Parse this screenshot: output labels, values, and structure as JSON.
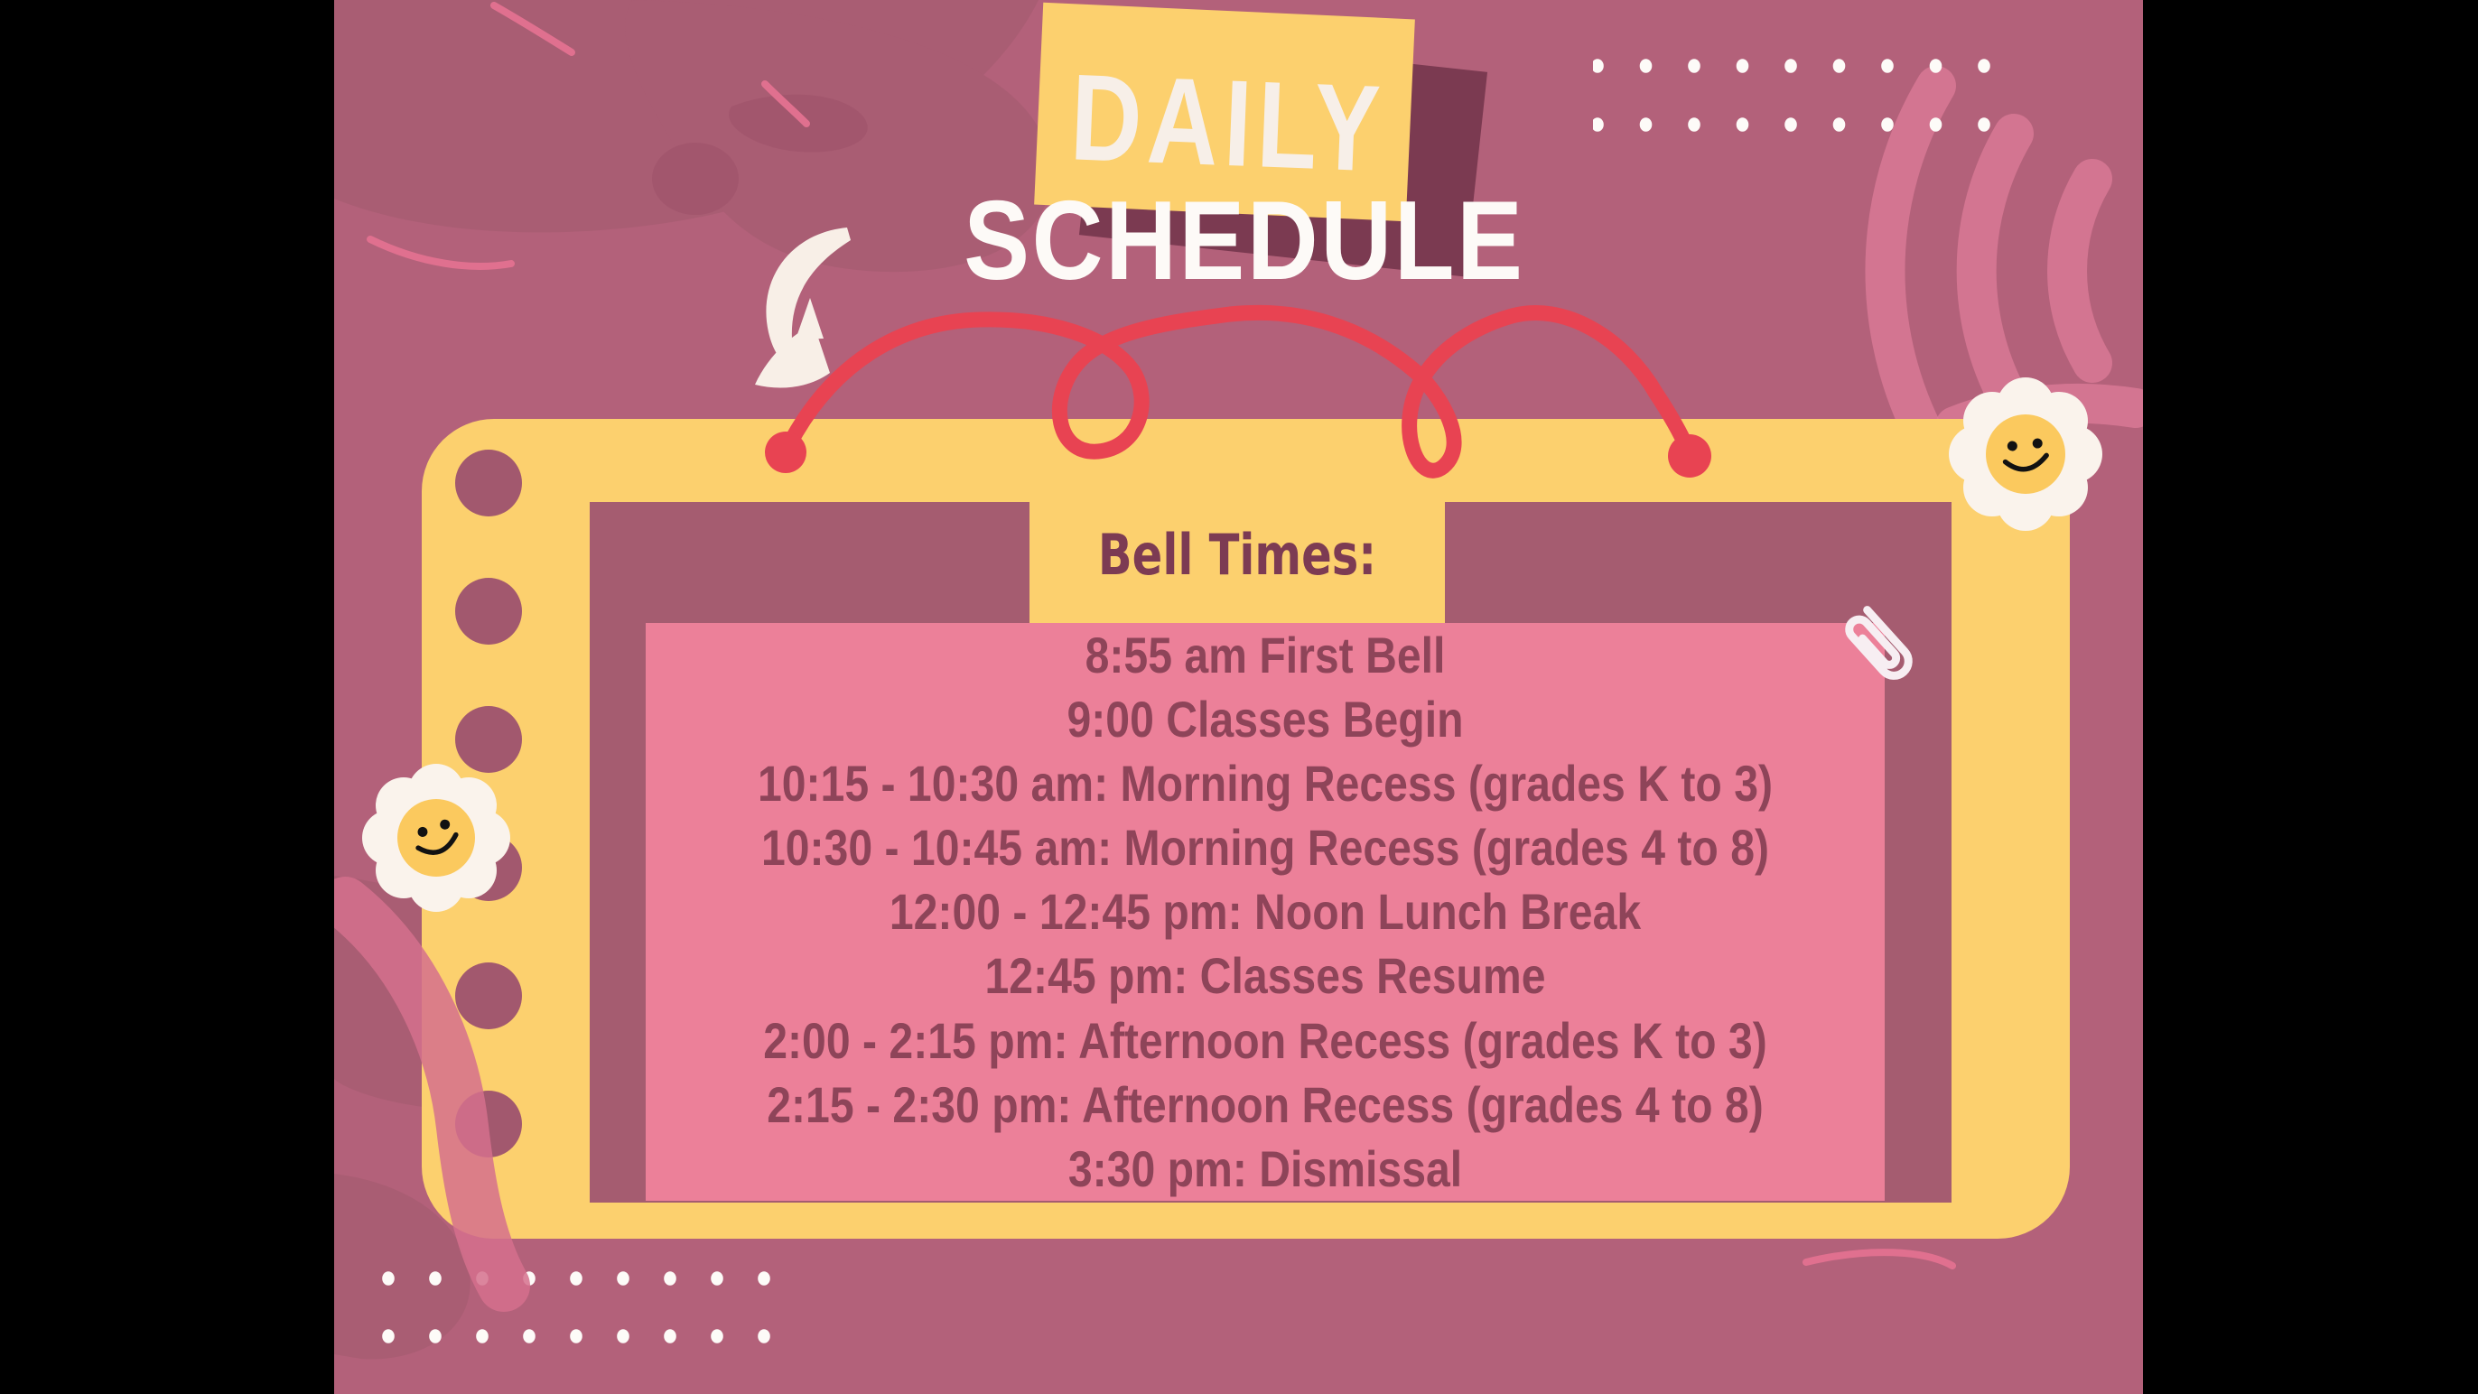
{
  "poster": {
    "title_line1": "DAILY",
    "title_line2": "SCHEDULE",
    "tab_label": "Bell Times:",
    "schedule_lines": [
      "8:55 am First Bell",
      "9:00 Classes Begin",
      "10:15 - 10:30 am: Morning Recess (grades K to 3)",
      "10:30 - 10:45 am: Morning Recess (grades 4 to 8)",
      "12:00 - 12:45 pm: Noon Lunch Break",
      "12:45 pm: Classes Resume",
      "2:00 - 2:15 pm: Afternoon Recess (grades K to 3)",
      "2:15 - 2:30 pm: Afternoon Recess (grades 4 to 8)",
      "3:30 pm: Dismissal"
    ]
  },
  "decor": {
    "icons": [
      "curved-arrow-icon",
      "red-squiggle-icon",
      "daisy-smiley-icon-left",
      "daisy-smiley-icon-right",
      "paperclip-icon",
      "dot-grid-top-right",
      "dot-grid-bottom-left",
      "notebook-punch-holes",
      "chalk-swirl-right",
      "chalk-stroke-bottom-left"
    ]
  },
  "colors": {
    "letterbox": "#000000",
    "background": "#b3617a",
    "background_blob": "#a95d73",
    "panel_yellow": "#fcd06e",
    "panel_inner": "#a55c70",
    "pink_box": "#ec8099",
    "schedule_text": "#8e4459",
    "tab_text": "#7c3b53",
    "red_accent": "#e84352",
    "title_white": "#fdfaf7",
    "cream": "#f8efe7",
    "shadow_maroon": "#7b3a51",
    "daisy_center": "#fbc95e"
  }
}
